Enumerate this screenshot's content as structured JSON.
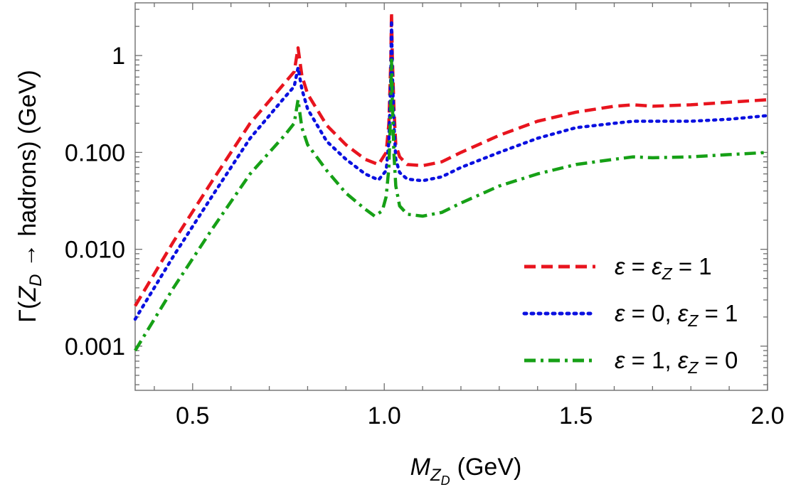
{
  "chart_data": {
    "type": "line",
    "title": "",
    "xlabel": {
      "main": "M",
      "sub": "Z",
      "subsub": "D",
      "unit": "(GeV)"
    },
    "ylabel": {
      "gamma": "Γ(",
      "Z": "Z",
      "Zsub": "D",
      "arrow": " → ",
      "text": "hadrons) (GeV)"
    },
    "x_scale": "linear",
    "y_scale": "log",
    "xlim": [
      0.35,
      2.0
    ],
    "ylim": [
      0.00035,
      3.5
    ],
    "x_ticks": [
      {
        "value": 0.5,
        "label": "0.5"
      },
      {
        "value": 1.0,
        "label": "1.0"
      },
      {
        "value": 1.5,
        "label": "1.5"
      },
      {
        "value": 2.0,
        "label": "2.0"
      }
    ],
    "y_ticks": [
      {
        "value": 0.001,
        "label": "0.001"
      },
      {
        "value": 0.01,
        "label": "0.010"
      },
      {
        "value": 0.1,
        "label": "0.100"
      },
      {
        "value": 1,
        "label": "1"
      }
    ],
    "legend_position": "bottom-right",
    "series": [
      {
        "name": "ε = εZ = 1",
        "legend": {
          "parts": [
            "ε",
            " = ",
            "ε",
            "Z",
            " = 1"
          ]
        },
        "color": "#e8141e",
        "style": "dashed",
        "x": [
          0.35,
          0.45,
          0.55,
          0.65,
          0.7,
          0.74,
          0.765,
          0.775,
          0.785,
          0.8,
          0.85,
          0.9,
          0.95,
          0.985,
          1.005,
          1.012,
          1.017,
          1.019,
          1.021,
          1.025,
          1.03,
          1.04,
          1.06,
          1.1,
          1.15,
          1.2,
          1.3,
          1.4,
          1.5,
          1.6,
          1.65,
          1.7,
          1.8,
          1.9,
          2.0
        ],
        "values": [
          0.0026,
          0.012,
          0.05,
          0.2,
          0.34,
          0.52,
          0.68,
          1.2,
          0.62,
          0.4,
          0.19,
          0.12,
          0.085,
          0.075,
          0.1,
          0.2,
          0.9,
          2.8,
          1.0,
          0.3,
          0.12,
          0.09,
          0.075,
          0.073,
          0.08,
          0.1,
          0.15,
          0.21,
          0.26,
          0.3,
          0.31,
          0.3,
          0.31,
          0.33,
          0.35
        ]
      },
      {
        "name": "ε = 0, εZ = 1",
        "legend": {
          "parts": [
            "ε",
            " = 0, ",
            "ε",
            "Z",
            " = 1"
          ]
        },
        "color": "#0a10e0",
        "style": "dotted",
        "x": [
          0.35,
          0.45,
          0.55,
          0.65,
          0.7,
          0.74,
          0.765,
          0.775,
          0.785,
          0.8,
          0.85,
          0.9,
          0.95,
          0.985,
          1.005,
          1.012,
          1.017,
          1.019,
          1.021,
          1.025,
          1.03,
          1.04,
          1.06,
          1.1,
          1.15,
          1.2,
          1.3,
          1.4,
          1.5,
          1.6,
          1.65,
          1.7,
          1.8,
          1.9,
          2.0
        ],
        "values": [
          0.0019,
          0.0085,
          0.035,
          0.14,
          0.24,
          0.37,
          0.48,
          0.75,
          0.45,
          0.28,
          0.13,
          0.085,
          0.06,
          0.052,
          0.065,
          0.13,
          0.6,
          2.3,
          0.7,
          0.2,
          0.085,
          0.062,
          0.053,
          0.051,
          0.056,
          0.07,
          0.1,
          0.14,
          0.18,
          0.2,
          0.21,
          0.21,
          0.21,
          0.22,
          0.24
        ]
      },
      {
        "name": "ε = 1, εZ = 0",
        "legend": {
          "parts": [
            "ε",
            " = 1, ",
            "ε",
            "Z",
            " = 0"
          ]
        },
        "color": "#16a016",
        "style": "dashdot",
        "x": [
          0.35,
          0.45,
          0.55,
          0.65,
          0.7,
          0.74,
          0.765,
          0.775,
          0.785,
          0.8,
          0.85,
          0.9,
          0.95,
          0.975,
          0.995,
          1.005,
          1.012,
          1.017,
          1.019,
          1.021,
          1.025,
          1.03,
          1.04,
          1.06,
          1.1,
          1.15,
          1.2,
          1.3,
          1.4,
          1.5,
          1.6,
          1.65,
          1.7,
          1.8,
          1.9,
          2.0
        ],
        "values": [
          0.0009,
          0.004,
          0.016,
          0.06,
          0.1,
          0.15,
          0.2,
          0.35,
          0.18,
          0.12,
          0.065,
          0.038,
          0.026,
          0.022,
          0.025,
          0.035,
          0.07,
          0.3,
          0.9,
          0.35,
          0.1,
          0.045,
          0.028,
          0.023,
          0.022,
          0.024,
          0.03,
          0.045,
          0.06,
          0.075,
          0.085,
          0.09,
          0.088,
          0.09,
          0.095,
          0.1
        ]
      }
    ]
  }
}
